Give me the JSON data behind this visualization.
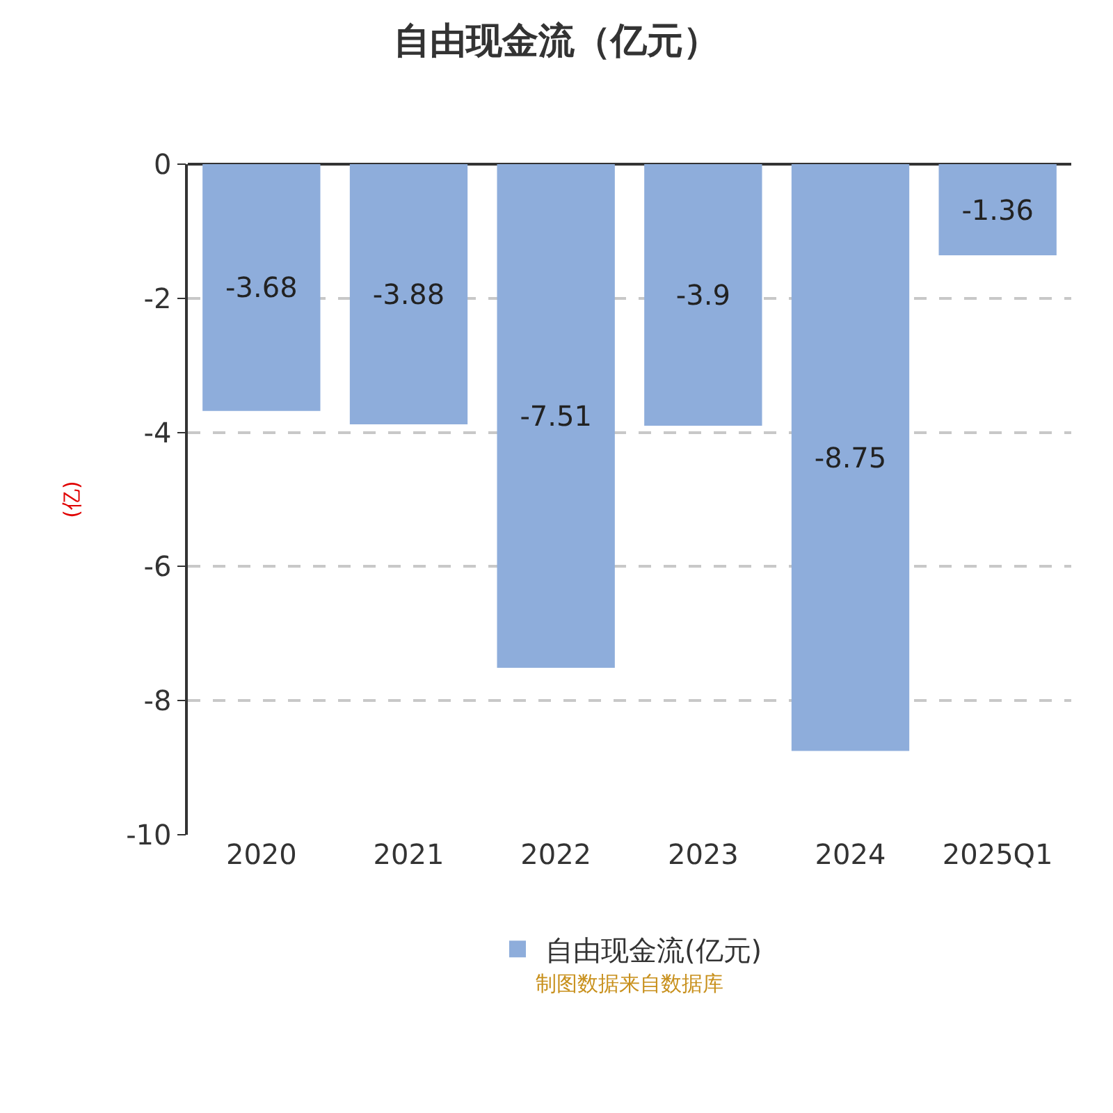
{
  "chart_data": {
    "type": "bar",
    "title": "自由现金流（亿元）",
    "ylabel": "(亿)",
    "categories": [
      "2020",
      "2021",
      "2022",
      "2023",
      "2024",
      "2025Q1"
    ],
    "series": [
      {
        "name": "自由现金流(亿元)",
        "color": "#8eaddb",
        "values": [
          -3.68,
          -3.88,
          -7.51,
          -3.9,
          -8.75,
          -1.36
        ]
      }
    ],
    "ylim": [
      -10,
      0
    ],
    "yticks": [
      -10,
      -8,
      -6,
      -4,
      -2,
      0
    ],
    "grid": "y",
    "legend": "bottom",
    "data_labels": true,
    "annotations": [
      "制图数据来自数据库"
    ]
  }
}
